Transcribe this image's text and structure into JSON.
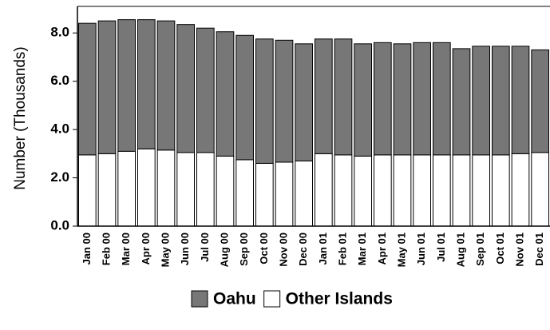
{
  "chart_data": {
    "type": "stacked_bar",
    "y_label": "Number (Thousands)",
    "categories": [
      "Jan 00",
      "Feb 00",
      "Mar 00",
      "Apr 00",
      "May 00",
      "Jun 00",
      "Jul 00",
      "Aug 00",
      "Sep 00",
      "Oct 00",
      "Nov 00",
      "Dec 00",
      "Jan 01",
      "Feb 01",
      "Mar 01",
      "Apr 01",
      "May 01",
      "Jun 01",
      "Jul 01",
      "Aug 01",
      "Sep 01",
      "Oct 01",
      "Nov 01",
      "Dec 01"
    ],
    "series": [
      {
        "name": "Other Islands",
        "color": "#ffffff",
        "values": [
          2.95,
          3.0,
          3.1,
          3.2,
          3.15,
          3.05,
          3.05,
          2.9,
          2.75,
          2.6,
          2.65,
          2.7,
          3.0,
          2.95,
          2.9,
          2.95,
          2.95,
          2.95,
          2.95,
          2.95,
          2.95,
          2.95,
          3.0,
          3.05
        ]
      },
      {
        "name": "Oahu",
        "color": "#777777",
        "values": [
          5.45,
          5.5,
          5.45,
          5.35,
          5.35,
          5.3,
          5.15,
          5.15,
          5.15,
          5.15,
          5.05,
          4.85,
          4.75,
          4.8,
          4.65,
          4.65,
          4.6,
          4.65,
          4.65,
          4.4,
          4.5,
          4.5,
          4.45,
          4.25
        ]
      }
    ],
    "ylim": [
      0,
      9.1
    ],
    "yticks": [
      {
        "value": 0,
        "label": "0.0"
      },
      {
        "value": 2,
        "label": "2.0"
      },
      {
        "value": 4,
        "label": "4.0"
      },
      {
        "value": 6,
        "label": "6.0"
      },
      {
        "value": 8,
        "label": "8.0"
      }
    ]
  }
}
